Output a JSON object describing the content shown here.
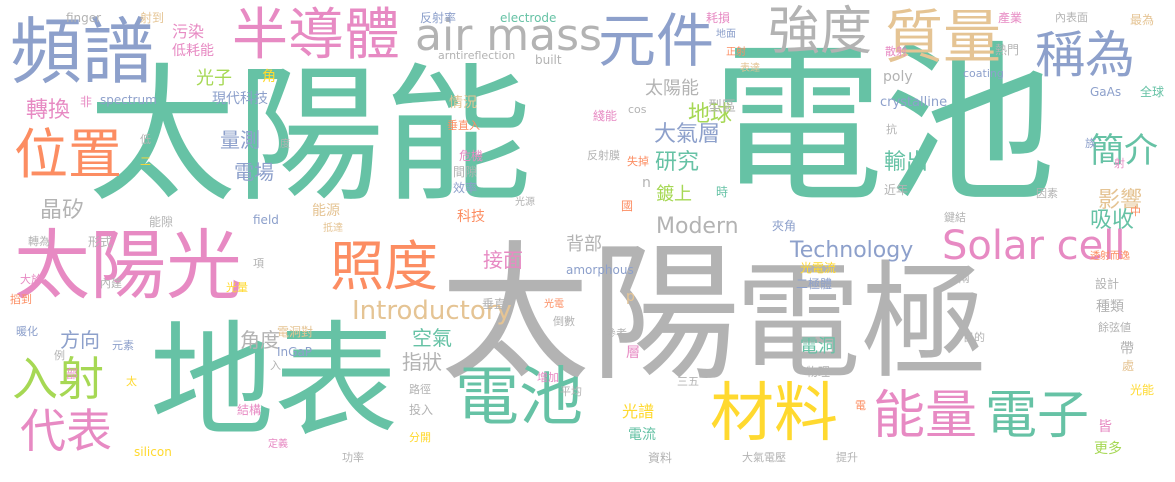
{
  "words": {
    "taiyangneng": "太陽能",
    "dianchi_big": "電池",
    "taiyang_big": "太陽",
    "dianji": "電極",
    "dibiao": "地表",
    "taiyangguang": "太陽光",
    "pinpu": "頻譜",
    "bandaoti": "半導體",
    "yuanjian": "元件",
    "qiangdu": "強度",
    "zhiliang": "質量",
    "chengwei": "稱為",
    "air_mass": "air mass",
    "weizhi": "位置",
    "zhaodu": "照度",
    "solar_cell": "Solar cell",
    "dianchi_mid": "電池",
    "cailiao": "材料",
    "nengliang": "能量",
    "dianzi": "電子",
    "rushe": "入射",
    "daibiao": "代表",
    "jianjie": "簡介",
    "introductory": "Introductory",
    "technology": "Technology",
    "modern": "Modern",
    "yanjiu": "研究",
    "diqiu": "地球",
    "daqiceng": "大氣層",
    "shuchu": "輸出",
    "yingxiang": "影響",
    "xishou": "吸收",
    "jingxi": "晶矽",
    "zhuanhuan": "轉換",
    "guangzi": "光子",
    "liangce": "量測",
    "diankchang": "電場",
    "beibu": "背部",
    "jiemian": "接面",
    "kongqi": "空氣",
    "zhizhuang": "指狀",
    "jiaodu": "角度",
    "fangxiang": "方向",
    "guangpu": "光譜",
    "dianliu": "電流",
    "diandong": "電洞",
    "dushang": "鍍上",
    "keji": "科技",
    "xiandaikeji": "現代科技",
    "taiyangneng_s": "太陽能",
    "qingkuang": "情況",
    "wuran": "污染",
    "diwuhao": "低耗能",
    "finger": "finger",
    "shedao": "射到",
    "fanshelv": "反射率",
    "electrode": "electrode",
    "haosun": "耗損",
    "chanye": "產業",
    "neibiaomian": "內表面",
    "zuiwei": "最為",
    "arc": "arntireflection",
    "built": "built",
    "dimian": "地面",
    "rizhong": "正射",
    "sandian": "散射",
    "remen": "熱門",
    "biaoda": "表達",
    "poly": "poly",
    "coating": "coating",
    "gaas": "GaAs",
    "quanqiu": "全球",
    "crystalline": "crystalline",
    "spectrum": "spectrum",
    "fei": "非",
    "chuizhiru": "垂直入",
    "cos": "cos",
    "xianneng": "綫能",
    "weiji": "危機",
    "fanshemo": "反射膜",
    "shiqu": "失掉",
    "jianxi": "間隙",
    "xiaolv": "效率",
    "guangyuan": "光源",
    "guo": "國",
    "nengyuan": "能源",
    "dida": "抵達",
    "jiajiao": "夾角",
    "guangdianliu": "光電流",
    "erjiti": "二極體",
    "liang": "兩",
    "sheji": "設計",
    "zhonglei": "種類",
    "yuxian": "餘弦値",
    "dai": "帶",
    "chu": "處",
    "guangneng": "光能",
    "wuli": "物理",
    "mudi": "目的",
    "dianxi": "電洞對",
    "ingap": "InGaP",
    "amorphous": "amorphous",
    "chuizhi": "垂直",
    "guangdian": "光電",
    "daoshu": "倒數",
    "canshu": "參考",
    "ceng": "層",
    "p": "p",
    "n": "n",
    "field": "field",
    "nengxi": "能隙",
    "zhuanwei": "轉為",
    "xingshi": "形式",
    "dayu": "大於",
    "neijian": "內建",
    "guangliang": "光量",
    "xiang": "項",
    "dadao": "搯到",
    "nuanhua": "暖化",
    "yuansu": "元素",
    "li": "例",
    "bu": "部",
    "ru": "入",
    "jiegou": "結構",
    "lujing": "路徑",
    "touru": "投入",
    "fenkai": "分開",
    "dingyi": "定義",
    "gonglv": "功率",
    "silicon": "silicon",
    "ziliao": "資料",
    "daqidianya": "大氣電壓",
    "tisheng": "提升",
    "pingjun": "平均",
    "zengjia": "增加",
    "sanwu": "三五",
    "jiaoshu": "角",
    "dian": "電",
    "jie": "皆",
    "gengduo": "更多",
    "jinnian": "近年",
    "yinsu": "因素",
    "jianjie2": "鍵結",
    "zhong": "中",
    "touming": "透射而逸",
    "zu": "族",
    "she": "射",
    "kang": "抗",
    "shi": "時",
    "xingqu": "型區",
    "du": "度",
    "di": "低",
    "er": "二",
    "tai": "太"
  }
}
